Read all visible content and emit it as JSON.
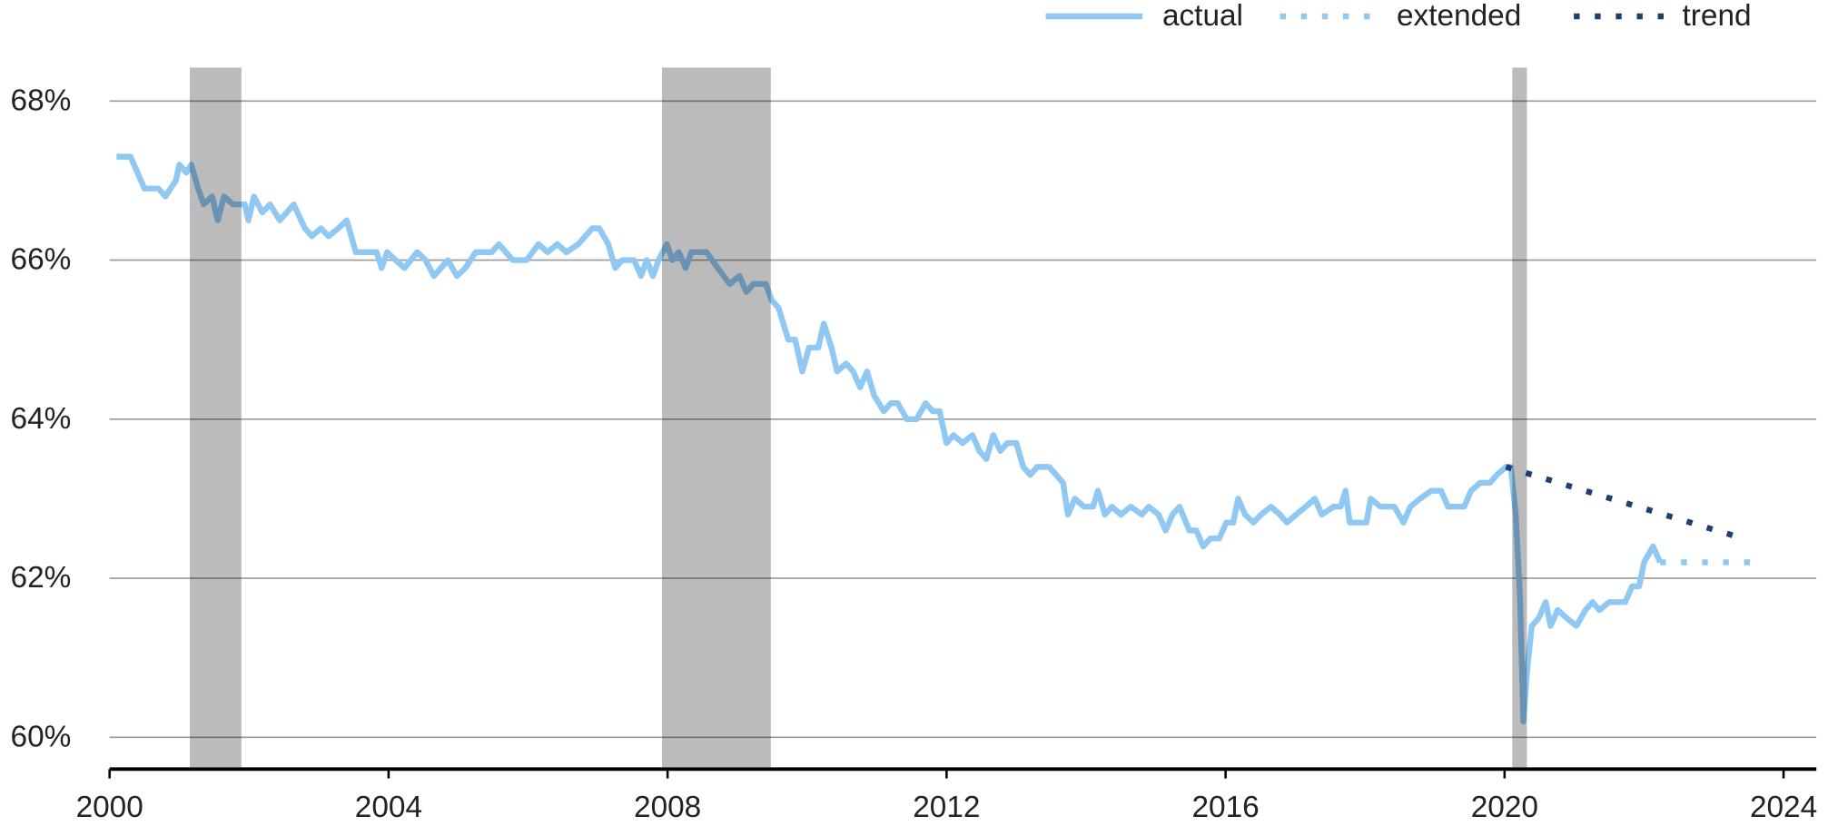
{
  "chart_data": {
    "type": "line",
    "xlim": [
      2000,
      2024.47
    ],
    "xticks": [
      2000,
      2004,
      2008,
      2012,
      2016,
      2020,
      2024
    ],
    "ylim": [
      59.6,
      68.42
    ],
    "yticks": [
      {
        "value": 60,
        "label": "60%"
      },
      {
        "value": 62,
        "label": "62%"
      },
      {
        "value": 64,
        "label": "64%"
      },
      {
        "value": 66,
        "label": "66%"
      },
      {
        "value": 68,
        "label": "68%"
      }
    ],
    "grid": true,
    "legend": "top-right",
    "recessions": [
      [
        2001.15,
        2001.89
      ],
      [
        2007.92,
        2009.48
      ],
      [
        2020.11,
        2020.32
      ]
    ],
    "recession_color": "#bbbbbb",
    "series": [
      {
        "name": "actual",
        "color": "#90c8f4",
        "style": "solid",
        "x": [
          2000.1,
          2000.3,
          2000.4,
          2000.5,
          2000.7,
          2000.8,
          2000.95,
          2001.0,
          2001.1,
          2001.17,
          2001.27,
          2001.35,
          2001.47,
          2001.55,
          2001.64,
          2001.77,
          2001.94,
          2001.99,
          2002.07,
          2002.19,
          2002.3,
          2002.44,
          2002.64,
          2002.8,
          2002.9,
          2003.03,
          2003.14,
          2003.28,
          2003.4,
          2003.53,
          2003.83,
          2003.9,
          2003.98,
          2004.1,
          2004.23,
          2004.41,
          2004.53,
          2004.65,
          2004.85,
          2004.98,
          2005.1,
          2005.25,
          2005.48,
          2005.58,
          2005.68,
          2005.78,
          2005.98,
          2006.15,
          2006.28,
          2006.42,
          2006.55,
          2006.72,
          2006.92,
          2007.02,
          2007.15,
          2007.25,
          2007.35,
          2007.52,
          2007.62,
          2007.7,
          2007.79,
          2007.87,
          2007.99,
          2008.07,
          2008.16,
          2008.26,
          2008.34,
          2008.56,
          2008.72,
          2008.89,
          2009.03,
          2009.13,
          2009.23,
          2009.41,
          2009.49,
          2009.59,
          2009.73,
          2009.83,
          2009.93,
          2010.03,
          2010.16,
          2010.24,
          2010.35,
          2010.43,
          2010.56,
          2010.66,
          2010.76,
          2010.86,
          2010.96,
          2011.1,
          2011.2,
          2011.3,
          2011.43,
          2011.57,
          2011.7,
          2011.8,
          2011.9,
          2012.0,
          2012.1,
          2012.23,
          2012.37,
          2012.47,
          2012.57,
          2012.67,
          2012.77,
          2012.87,
          2013.0,
          2013.1,
          2013.2,
          2013.3,
          2013.47,
          2013.57,
          2013.67,
          2013.74,
          2013.84,
          2013.97,
          2014.1,
          2014.17,
          2014.27,
          2014.37,
          2014.5,
          2014.64,
          2014.8,
          2014.9,
          2015.04,
          2015.14,
          2015.24,
          2015.34,
          2015.48,
          2015.58,
          2015.68,
          2015.78,
          2015.91,
          2016.01,
          2016.11,
          2016.18,
          2016.28,
          2016.4,
          2016.51,
          2016.65,
          2016.78,
          2016.88,
          2017.01,
          2017.15,
          2017.28,
          2017.38,
          2017.55,
          2017.65,
          2017.72,
          2017.78,
          2018.02,
          2018.08,
          2018.22,
          2018.42,
          2018.55,
          2018.65,
          2018.79,
          2018.95,
          2019.09,
          2019.19,
          2019.42,
          2019.52,
          2019.65,
          2019.79,
          2019.89,
          2020.02,
          2020.09,
          2020.16,
          2020.22,
          2020.27,
          2020.32,
          2020.39,
          2020.49,
          2020.59,
          2020.66,
          2020.76,
          2020.89,
          2021.03,
          2021.16,
          2021.26,
          2021.36,
          2021.5,
          2021.73,
          2021.83,
          2021.93,
          2022.0,
          2022.13,
          2022.23
        ],
        "values": [
          67.3,
          67.3,
          67.1,
          66.9,
          66.9,
          66.8,
          67.0,
          67.2,
          67.1,
          67.2,
          66.9,
          66.7,
          66.8,
          66.5,
          66.8,
          66.7,
          66.7,
          66.5,
          66.8,
          66.6,
          66.7,
          66.5,
          66.7,
          66.4,
          66.3,
          66.4,
          66.3,
          66.4,
          66.5,
          66.1,
          66.1,
          65.9,
          66.1,
          66.0,
          65.9,
          66.1,
          66.0,
          65.8,
          66.0,
          65.8,
          65.9,
          66.1,
          66.1,
          66.2,
          66.1,
          66.0,
          66.0,
          66.2,
          66.1,
          66.2,
          66.1,
          66.2,
          66.4,
          66.4,
          66.2,
          65.9,
          66.0,
          66.0,
          65.8,
          66.0,
          65.8,
          66.0,
          66.2,
          66.0,
          66.1,
          65.9,
          66.1,
          66.1,
          65.9,
          65.7,
          65.8,
          65.6,
          65.7,
          65.7,
          65.5,
          65.4,
          65.0,
          65.0,
          64.6,
          64.9,
          64.9,
          65.2,
          64.9,
          64.6,
          64.7,
          64.6,
          64.4,
          64.6,
          64.3,
          64.1,
          64.2,
          64.2,
          64.0,
          64.0,
          64.2,
          64.1,
          64.1,
          63.7,
          63.8,
          63.7,
          63.8,
          63.6,
          63.5,
          63.8,
          63.6,
          63.7,
          63.7,
          63.4,
          63.3,
          63.4,
          63.4,
          63.3,
          63.2,
          62.8,
          63.0,
          62.9,
          62.9,
          63.1,
          62.8,
          62.9,
          62.8,
          62.9,
          62.8,
          62.9,
          62.8,
          62.6,
          62.8,
          62.9,
          62.6,
          62.6,
          62.4,
          62.5,
          62.5,
          62.7,
          62.7,
          63.0,
          62.8,
          62.7,
          62.8,
          62.9,
          62.8,
          62.7,
          62.8,
          62.9,
          63.0,
          62.8,
          62.9,
          62.9,
          63.1,
          62.7,
          62.7,
          63.0,
          62.9,
          62.9,
          62.7,
          62.9,
          63.0,
          63.1,
          63.1,
          62.9,
          62.9,
          63.1,
          63.2,
          63.2,
          63.3,
          63.4,
          63.4,
          62.8,
          61.8,
          60.2,
          60.8,
          61.4,
          61.5,
          61.7,
          61.4,
          61.6,
          61.5,
          61.4,
          61.6,
          61.7,
          61.6,
          61.7,
          61.7,
          61.9,
          61.9,
          62.2,
          62.4,
          62.2
        ]
      },
      {
        "name": "extended",
        "color": "#90c8f4",
        "style": "dotted",
        "x": [
          2022.23,
          2023.55
        ],
        "values": [
          62.2,
          62.2
        ]
      },
      {
        "name": "trend",
        "color": "#1f3f6e",
        "style": "dotted",
        "x": [
          2020.02,
          2023.42
        ],
        "values": [
          63.4,
          62.5
        ]
      }
    ]
  }
}
